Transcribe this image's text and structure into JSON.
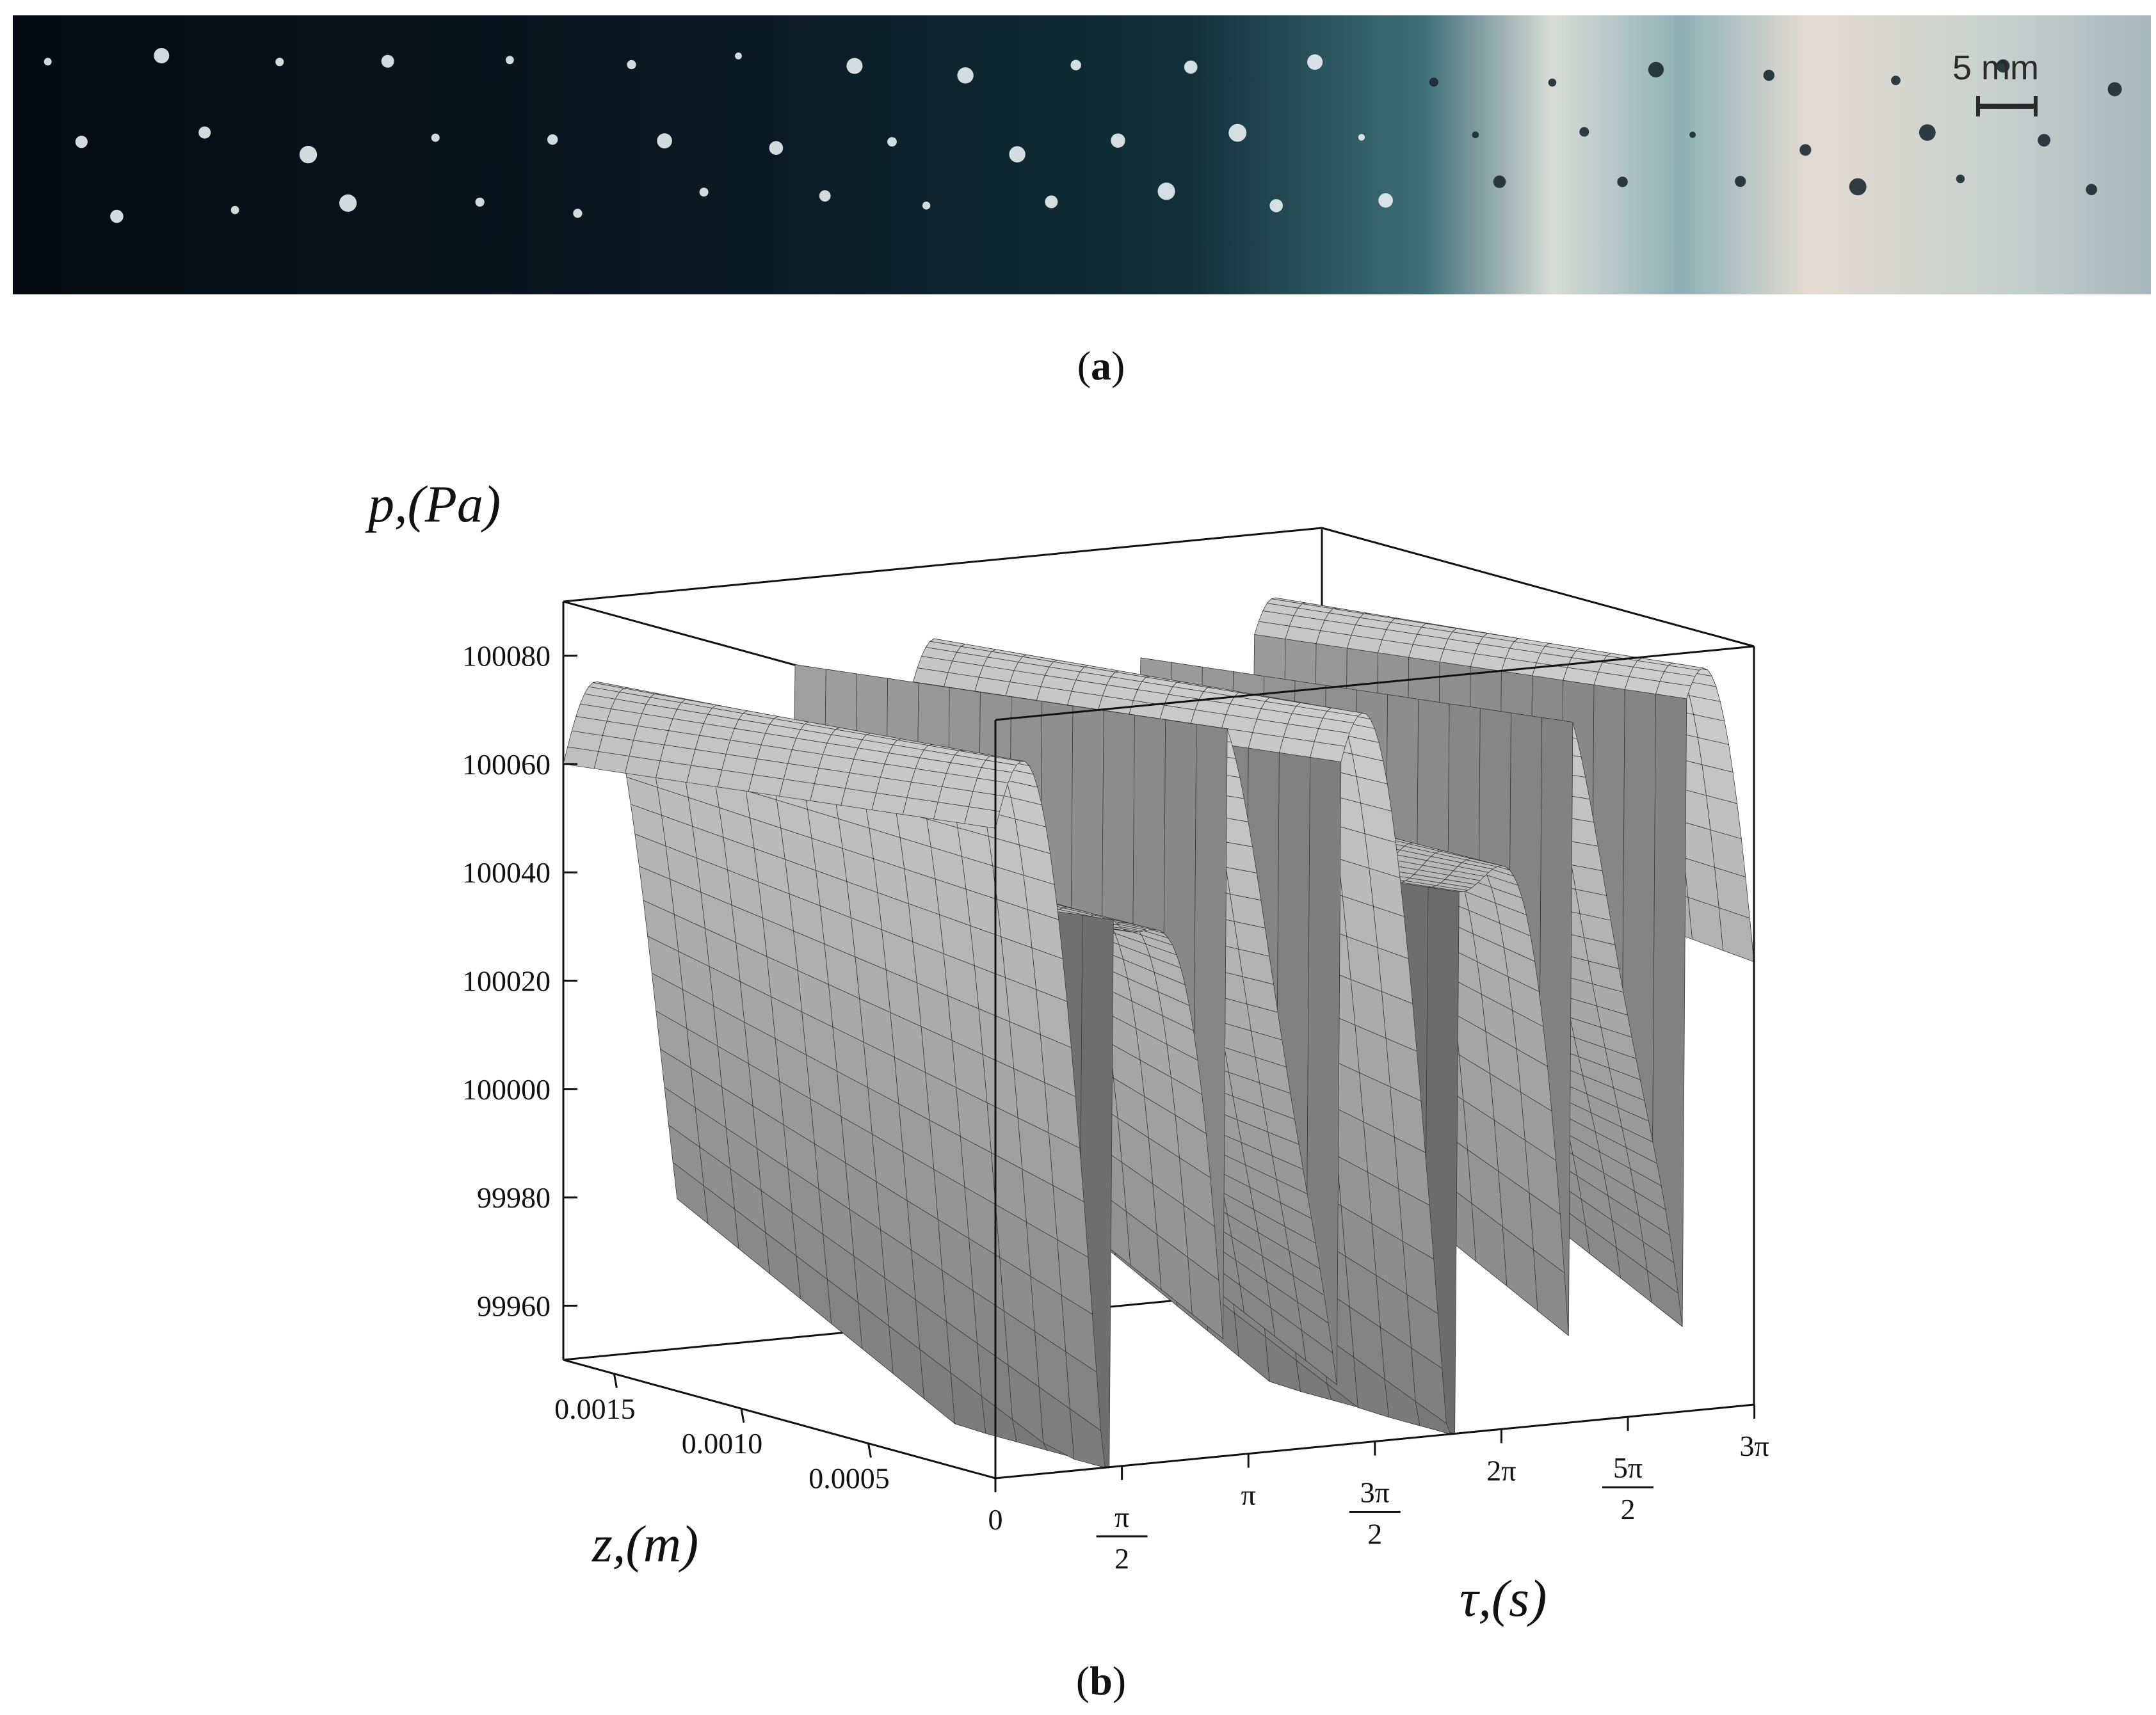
{
  "panel_a": {
    "caption": "(a)",
    "caption_letter": "a",
    "scale_bar_label": "5 mm",
    "description_colors": {
      "dark": "#081a22",
      "teal": "#3f6f78",
      "light": "#d9dcd6"
    }
  },
  "panel_b": {
    "caption": "(b)",
    "caption_letter": "b"
  },
  "chart_data": {
    "type": "surface",
    "title": "",
    "xlabel": "τ,(s)",
    "ylabel": "z,(m)",
    "zlabel": "p,(Pa)",
    "x_ticks": [
      "0",
      "π/2",
      "π",
      "3π/2",
      "2π",
      "5π/2",
      "3π"
    ],
    "y_ticks": [
      "0.0015",
      "0.0010",
      "0.0005"
    ],
    "z_ticks": [
      "100080",
      "100060",
      "100040",
      "100020",
      "100000",
      "99980",
      "99960"
    ],
    "xlim": [
      0,
      9.42
    ],
    "ylim": [
      0,
      0.0017
    ],
    "zlim": [
      99950,
      100090
    ],
    "color": "#9a9a9a",
    "description": "pressure surface oscillating in tau with sawtooth-like peaks, decreasing with z"
  }
}
